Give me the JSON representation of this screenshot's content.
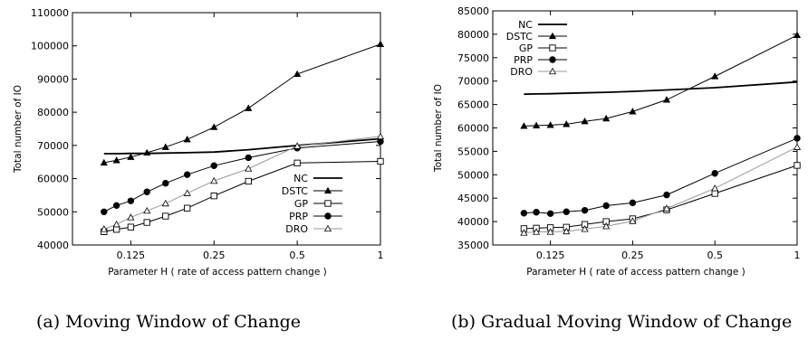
{
  "chart_data": [
    {
      "type": "line",
      "caption": "(a) Moving Window of Change",
      "xlabel": "Parameter H ( rate of access pattern change )",
      "ylabel": "Total number of IO",
      "x_scale": "log2",
      "xlim": [
        0.0769,
        1.0
      ],
      "ylim": [
        40000,
        110000
      ],
      "x_ticks": [
        0.125,
        0.25,
        0.5,
        1
      ],
      "x_tick_labels": [
        "0.125",
        "0.25",
        "0.5",
        "1"
      ],
      "y_ticks": [
        40000,
        50000,
        60000,
        70000,
        80000,
        90000,
        100000,
        110000
      ],
      "y_tick_labels": [
        "40000",
        "50000",
        "60000",
        "70000",
        "80000",
        "90000",
        "100000",
        "110000"
      ],
      "legend_position": "bottom-right",
      "x": [
        0.1,
        0.111,
        0.125,
        0.143,
        0.167,
        0.2,
        0.25,
        0.333,
        0.5,
        1.0
      ],
      "series": [
        {
          "name": "NC",
          "marker": "none",
          "color": "#000000",
          "values": [
            67500,
            67500,
            67600,
            67600,
            67700,
            67800,
            68000,
            68700,
            70000,
            72000
          ]
        },
        {
          "name": "DSTC",
          "marker": "triangle-filled",
          "color": "#000000",
          "values": [
            64800,
            65500,
            66500,
            67800,
            69500,
            71800,
            75500,
            81200,
            91500,
            100500
          ]
        },
        {
          "name": "GP",
          "marker": "square-open",
          "color": "#000000",
          "values": [
            44000,
            44700,
            45400,
            46800,
            48700,
            51100,
            54800,
            59200,
            64700,
            65200
          ]
        },
        {
          "name": "PRP",
          "marker": "circle-filled",
          "color": "#000000",
          "values": [
            50000,
            51900,
            53300,
            56000,
            58600,
            61200,
            63900,
            66300,
            69200,
            71200
          ]
        },
        {
          "name": "DRO",
          "marker": "triangle-open",
          "color": "#999999",
          "values": [
            44800,
            46200,
            48300,
            50300,
            52500,
            55600,
            59300,
            63000,
            69800,
            72700
          ]
        }
      ]
    },
    {
      "type": "line",
      "caption": "(b) Gradual Moving Window of Change",
      "xlabel": "Parameter H ( rate of access pattern change )",
      "ylabel": "Total number of IO",
      "x_scale": "log2",
      "xlim": [
        0.0769,
        1.0
      ],
      "ylim": [
        35000,
        85000
      ],
      "x_ticks": [
        0.125,
        0.25,
        0.5,
        1
      ],
      "x_tick_labels": [
        "0.125",
        "0.25",
        "0.5",
        "1"
      ],
      "y_ticks": [
        35000,
        40000,
        45000,
        50000,
        55000,
        60000,
        65000,
        70000,
        75000,
        80000,
        85000
      ],
      "y_tick_labels": [
        "35000",
        "40000",
        "45000",
        "50000",
        "55000",
        "60000",
        "65000",
        "70000",
        "75000",
        "80000",
        "85000"
      ],
      "legend_position": "top-left",
      "x": [
        0.1,
        0.111,
        0.125,
        0.143,
        0.167,
        0.2,
        0.25,
        0.333,
        0.5,
        1.0
      ],
      "series": [
        {
          "name": "NC",
          "marker": "none",
          "color": "#000000",
          "values": [
            67200,
            67250,
            67300,
            67400,
            67500,
            67600,
            67800,
            68100,
            68600,
            69800
          ]
        },
        {
          "name": "DSTC",
          "marker": "triangle-filled",
          "color": "#000000",
          "values": [
            60400,
            60500,
            60600,
            60800,
            61400,
            62000,
            63500,
            66000,
            71000,
            79800
          ]
        },
        {
          "name": "GP",
          "marker": "square-open",
          "color": "#000000",
          "values": [
            38500,
            38600,
            38700,
            38800,
            39400,
            40000,
            40600,
            42500,
            46000,
            52000
          ]
        },
        {
          "name": "PRP",
          "marker": "circle-filled",
          "color": "#000000",
          "values": [
            41800,
            42000,
            41700,
            42100,
            42400,
            43400,
            44000,
            45700,
            50300,
            57800
          ]
        },
        {
          "name": "DRO",
          "marker": "triangle-open",
          "color": "#999999",
          "values": [
            37600,
            37800,
            37800,
            37900,
            38400,
            39000,
            40100,
            42800,
            47100,
            55900
          ]
        }
      ]
    }
  ]
}
